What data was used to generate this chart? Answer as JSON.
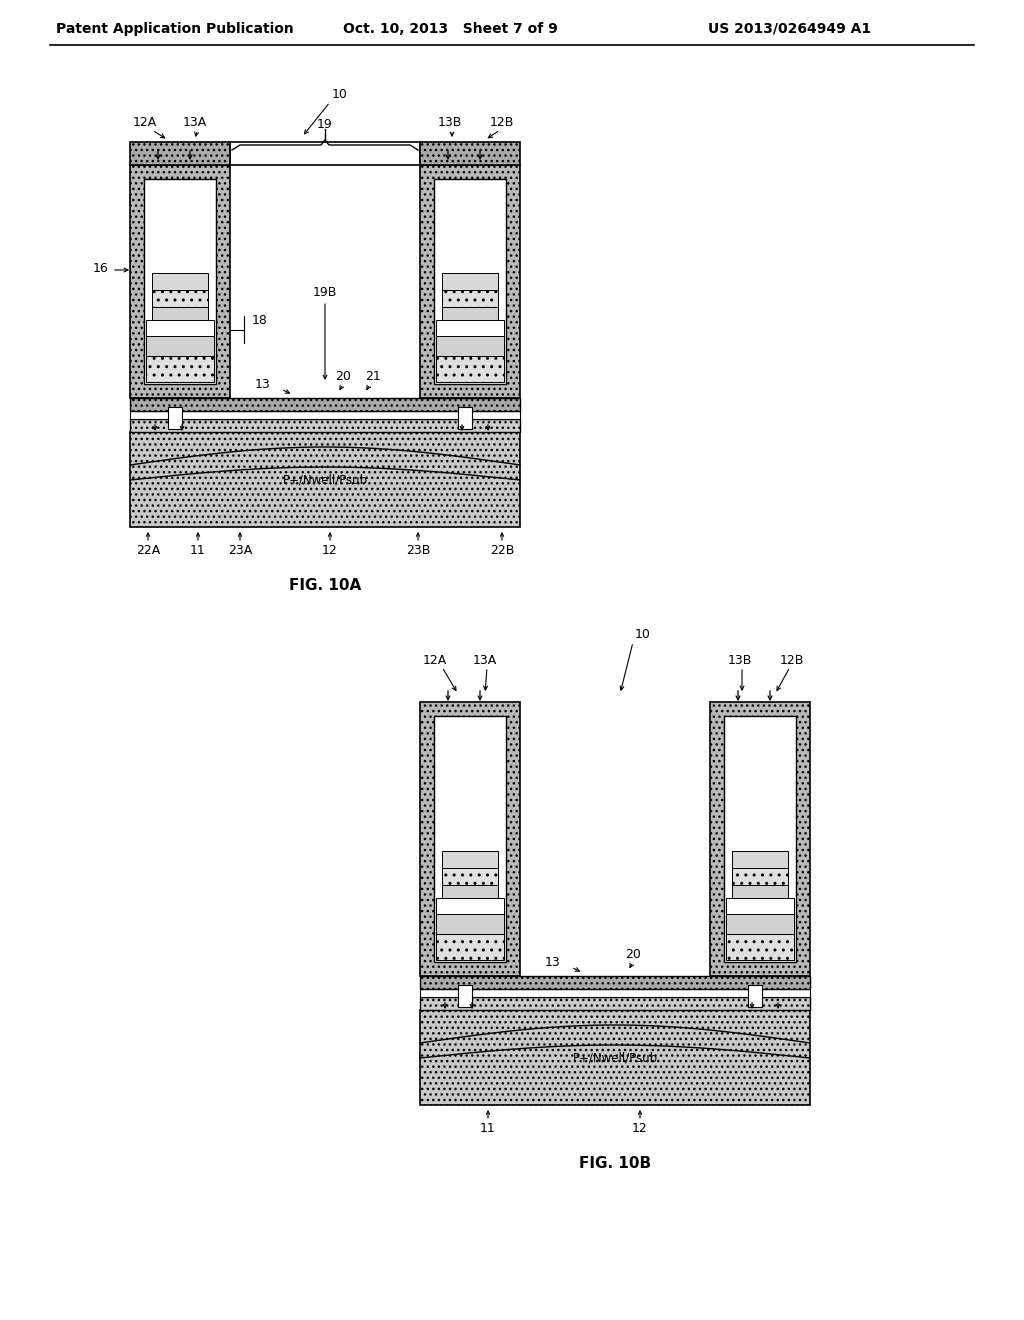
{
  "bg_color": "#ffffff",
  "header_left": "Patent Application Publication",
  "header_mid": "Oct. 10, 2013   Sheet 7 of 9",
  "header_right": "US 2013/0264949 A1",
  "fig10a_label": "FIG. 10A",
  "fig10b_label": "FIG. 10B"
}
